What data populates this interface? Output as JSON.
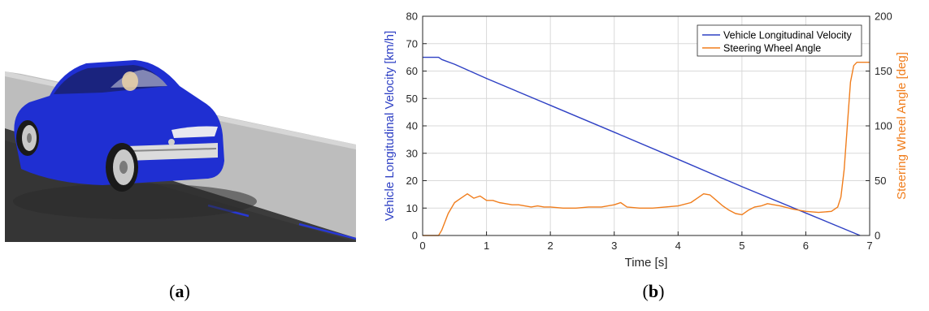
{
  "captions": {
    "a_open": "(",
    "a_letter": "a",
    "a_close": ")",
    "b_open": "(",
    "b_letter": "b",
    "b_close": ")"
  },
  "colors": {
    "velocity": "#2e40c4",
    "steering": "#f07d1c",
    "car_body": "#1f2fd2",
    "road": "#3c3c3c",
    "sidewalk": "#bdbdbd",
    "lane_marking": "#2838d4"
  },
  "chart_data": {
    "type": "line",
    "xlabel": "Time [s]",
    "ylabel_left": "Vehicle Longitudinal Velocity [km/h]",
    "ylabel_right": "Steering Wheel Angle [deg]",
    "xlim": [
      0,
      7
    ],
    "ylim_left": [
      0,
      80
    ],
    "ylim_right": [
      0,
      200
    ],
    "x_ticks": [
      "0",
      "1",
      "2",
      "3",
      "4",
      "5",
      "6",
      "7"
    ],
    "y_ticks_left": [
      "0",
      "10",
      "20",
      "30",
      "40",
      "50",
      "60",
      "70",
      "80"
    ],
    "y_ticks_right": [
      "0",
      "50",
      "100",
      "150",
      "200"
    ],
    "grid": true,
    "legend_position": "top-right",
    "series": [
      {
        "name": "Vehicle Longitudinal Velocity",
        "axis": "left",
        "color": "#2e40c4",
        "x": [
          0,
          0.25,
          0.3,
          0.5,
          1,
          2,
          3,
          4,
          5,
          6,
          6.85
        ],
        "y": [
          65,
          65,
          64.2,
          62.5,
          57.3,
          47.5,
          37.7,
          27.8,
          17.8,
          8.2,
          0
        ]
      },
      {
        "name": "Steering Wheel Angle",
        "axis": "right",
        "color": "#f07d1c",
        "x": [
          0,
          0.2,
          0.25,
          0.3,
          0.4,
          0.5,
          0.6,
          0.7,
          0.8,
          0.9,
          1.0,
          1.1,
          1.2,
          1.3,
          1.4,
          1.5,
          1.6,
          1.7,
          1.8,
          1.9,
          2.0,
          2.2,
          2.4,
          2.6,
          2.8,
          3.0,
          3.1,
          3.2,
          3.4,
          3.6,
          3.8,
          4.0,
          4.2,
          4.3,
          4.4,
          4.5,
          4.6,
          4.7,
          4.8,
          4.9,
          5.0,
          5.1,
          5.2,
          5.3,
          5.4,
          5.5,
          5.6,
          5.8,
          6.0,
          6.2,
          6.4,
          6.5,
          6.55,
          6.6,
          6.65,
          6.7,
          6.75,
          6.8,
          6.9,
          7.0
        ],
        "y": [
          0,
          0,
          0,
          5,
          20,
          30,
          34,
          38,
          34,
          36,
          32,
          32,
          30,
          29,
          28,
          28,
          27,
          26,
          27,
          26,
          26,
          25,
          25,
          26,
          26,
          28,
          30,
          26,
          25,
          25,
          26,
          27,
          30,
          34,
          38,
          37,
          32,
          27,
          23,
          20,
          19,
          23,
          26,
          27,
          29,
          28,
          27,
          24,
          22,
          21,
          22,
          26,
          35,
          60,
          100,
          140,
          155,
          158,
          158,
          158
        ]
      }
    ]
  }
}
